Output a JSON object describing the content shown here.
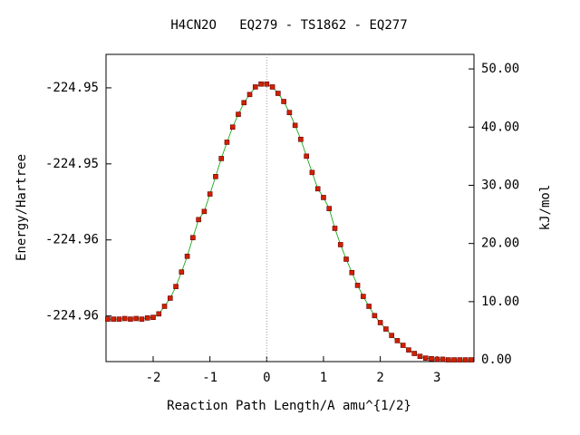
{
  "chart_data": {
    "type": "line",
    "title": "H4CN2O   EQ279 - TS1862 - EQ277",
    "xlabel": "Reaction Path Length/A amu^{1/2}",
    "ylabel": "Energy/Hartree",
    "y2label": "kJ/mol",
    "xlim": [
      -2.83,
      3.65
    ],
    "xticks": [
      -2,
      -1,
      0,
      1,
      2,
      3
    ],
    "ylim": [
      -224.968,
      -224.9478
    ],
    "yticks": [
      {
        "value": -224.95,
        "label": "-224.95"
      },
      {
        "value": -224.955,
        "label": "-224.95"
      },
      {
        "value": -224.96,
        "label": "-224.96"
      },
      {
        "value": -224.965,
        "label": "-224.96"
      }
    ],
    "y2lim": [
      -0.3,
      52.5
    ],
    "y2ticks": [
      {
        "value": 0,
        "label": "0.00"
      },
      {
        "value": 10,
        "label": "10.00"
      },
      {
        "value": 20,
        "label": "20.00"
      },
      {
        "value": 30,
        "label": "30.00"
      },
      {
        "value": 40,
        "label": "40.00"
      },
      {
        "value": 50,
        "label": "50.00"
      }
    ],
    "vline": 0,
    "line_color": "#00a000",
    "marker_color": "#d02000",
    "x": [
      -2.8,
      -2.7,
      -2.6,
      -2.5,
      -2.4,
      -2.3,
      -2.2,
      -2.1,
      -2.0,
      -1.9,
      -1.8,
      -1.7,
      -1.6,
      -1.5,
      -1.4,
      -1.3,
      -1.2,
      -1.1,
      -1.0,
      -0.9,
      -0.8,
      -0.7,
      -0.6,
      -0.5,
      -0.4,
      -0.3,
      -0.2,
      -0.1,
      0.0,
      0.1,
      0.2,
      0.3,
      0.4,
      0.5,
      0.6,
      0.7,
      0.8,
      0.9,
      1.0,
      1.1,
      1.2,
      1.3,
      1.4,
      1.5,
      1.6,
      1.7,
      1.8,
      1.9,
      2.0,
      2.1,
      2.2,
      2.3,
      2.4,
      2.5,
      2.6,
      2.7,
      2.8,
      2.9,
      3.0,
      3.1,
      3.2,
      3.3,
      3.4,
      3.5,
      3.6
    ],
    "series": [
      {
        "axis": "y2",
        "values": [
          7.0,
          7.0,
          7.0,
          7.1,
          7.0,
          7.1,
          7.0,
          7.2,
          7.3,
          7.9,
          9.2,
          10.6,
          12.6,
          15.1,
          17.8,
          21.0,
          24.1,
          25.5,
          28.5,
          31.5,
          34.6,
          37.4,
          40.0,
          42.2,
          44.2,
          45.6,
          46.9,
          47.4,
          47.4,
          46.9,
          45.8,
          44.4,
          42.5,
          40.3,
          37.9,
          35.0,
          32.2,
          29.4,
          27.9,
          26.0,
          22.6,
          19.8,
          17.3,
          15.0,
          12.8,
          10.9,
          9.2,
          7.6,
          6.4,
          5.3,
          4.2,
          3.3,
          2.5,
          1.7,
          1.1,
          0.6,
          0.3,
          0.2,
          0.1,
          0.1,
          0.0,
          0.0,
          0.0,
          0.0,
          0.0
        ]
      }
    ]
  }
}
